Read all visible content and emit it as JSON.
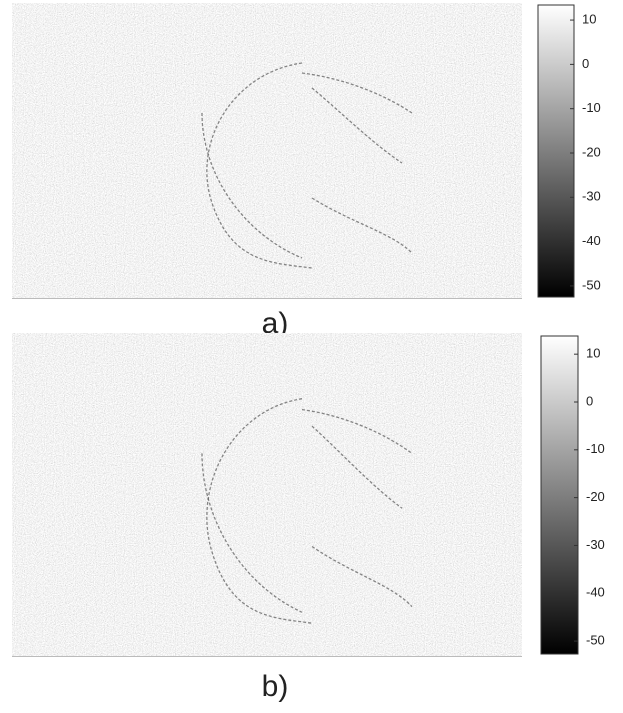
{
  "chart_data": [
    {
      "type": "image",
      "caption": "a)",
      "colorbar": true,
      "cmap": [
        "#000000",
        "#ffffff"
      ],
      "clim": [
        -52.5,
        13.4
      ],
      "ticks": [
        10,
        0,
        -10,
        -20,
        -30,
        -40,
        -50
      ]
    },
    {
      "type": "image",
      "caption": "b)",
      "colorbar": true,
      "cmap": [
        "#000000",
        "#ffffff"
      ],
      "clim": [
        -52.7,
        13.8
      ],
      "ticks": [
        10,
        0,
        -10,
        -20,
        -30,
        -40,
        -50
      ]
    }
  ]
}
